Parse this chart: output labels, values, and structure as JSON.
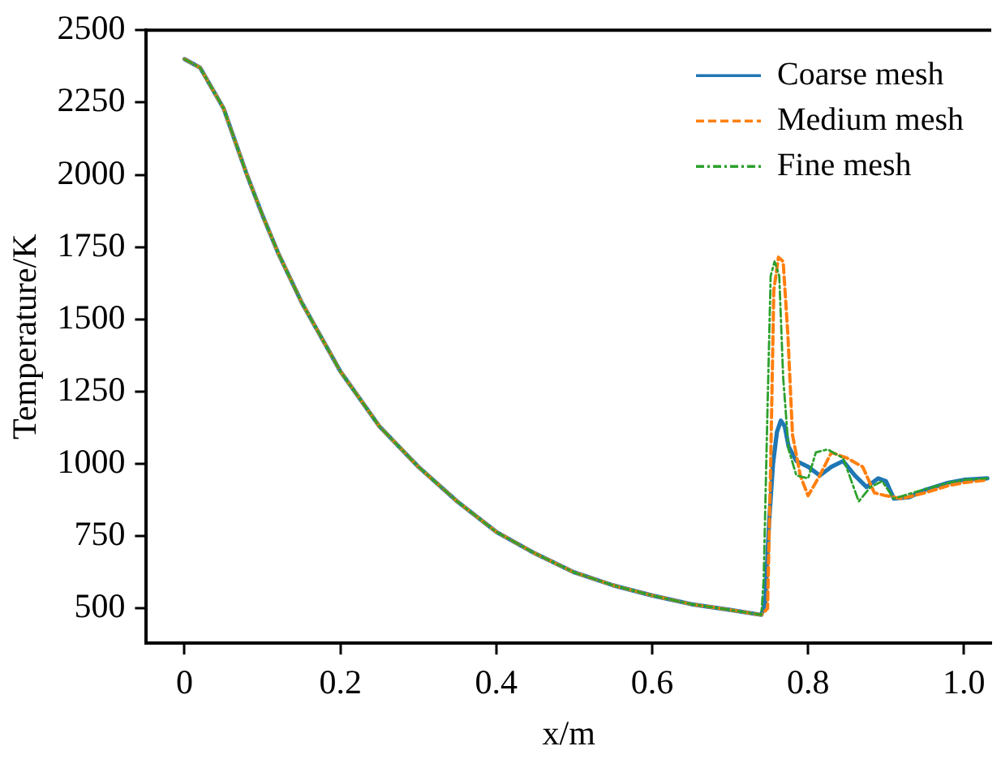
{
  "chart_data": {
    "type": "line",
    "xlabel": "x/m",
    "ylabel": "Temperature/K",
    "xlim": [
      -0.049,
      1.035
    ],
    "ylim": [
      380,
      2500
    ],
    "xticks": [
      0,
      0.2,
      0.4,
      0.6,
      0.8,
      {
        "value": 1,
        "label": "1.0"
      }
    ],
    "yticks": [
      500,
      750,
      1000,
      1250,
      1500,
      1750,
      2000,
      2250,
      2500
    ],
    "grid": false,
    "legend": "top right",
    "marker": "none",
    "series": [
      {
        "name": "Coarse mesh",
        "color": "#1f77b4",
        "line_style": "solid",
        "x": [
          0,
          0.02,
          0.05,
          0.08,
          0.1,
          0.12,
          0.15,
          0.2,
          0.25,
          0.3,
          0.35,
          0.4,
          0.45,
          0.5,
          0.55,
          0.6,
          0.65,
          0.7,
          0.74,
          0.745,
          0.75,
          0.755,
          0.76,
          0.765,
          0.77,
          0.775,
          0.785,
          0.8,
          0.815,
          0.83,
          0.845,
          0.86,
          0.875,
          0.89,
          0.9,
          0.91,
          0.93,
          0.95,
          0.98,
          1.0,
          1.03
        ],
        "values": [
          2400,
          2370,
          2230,
          2000,
          1860,
          1730,
          1560,
          1320,
          1130,
          990,
          870,
          765,
          690,
          625,
          580,
          545,
          515,
          495,
          478,
          520,
          800,
          1000,
          1110,
          1150,
          1130,
          1060,
          1010,
          990,
          960,
          990,
          1010,
          960,
          920,
          950,
          940,
          880,
          885,
          910,
          935,
          945,
          950
        ]
      },
      {
        "name": "Medium mesh",
        "color": "#ff7f0e",
        "line_style": "dashed",
        "x": [
          0,
          0.02,
          0.05,
          0.08,
          0.1,
          0.12,
          0.15,
          0.2,
          0.25,
          0.3,
          0.35,
          0.4,
          0.45,
          0.5,
          0.55,
          0.6,
          0.65,
          0.7,
          0.74,
          0.748,
          0.752,
          0.756,
          0.762,
          0.768,
          0.774,
          0.78,
          0.79,
          0.8,
          0.815,
          0.83,
          0.85,
          0.87,
          0.885,
          0.9,
          0.92,
          0.95,
          0.98,
          1.0,
          1.03
        ],
        "values": [
          2400,
          2370,
          2230,
          2000,
          1860,
          1730,
          1560,
          1320,
          1130,
          990,
          870,
          765,
          690,
          625,
          580,
          545,
          515,
          495,
          478,
          500,
          1000,
          1600,
          1715,
          1700,
          1450,
          1100,
          960,
          890,
          960,
          1040,
          1020,
          990,
          900,
          890,
          880,
          900,
          925,
          935,
          945
        ]
      },
      {
        "name": "Fine mesh",
        "color": "#2ca02c",
        "line_style": "dashdot",
        "x": [
          0,
          0.02,
          0.05,
          0.08,
          0.1,
          0.12,
          0.15,
          0.2,
          0.25,
          0.3,
          0.35,
          0.4,
          0.45,
          0.5,
          0.55,
          0.6,
          0.65,
          0.7,
          0.74,
          0.743,
          0.748,
          0.752,
          0.757,
          0.763,
          0.768,
          0.775,
          0.785,
          0.8,
          0.81,
          0.825,
          0.845,
          0.865,
          0.88,
          0.895,
          0.91,
          0.94,
          0.98,
          1.0,
          1.03
        ],
        "values": [
          2400,
          2370,
          2230,
          2000,
          1860,
          1730,
          1560,
          1320,
          1130,
          990,
          870,
          765,
          690,
          625,
          580,
          545,
          515,
          495,
          478,
          600,
          1200,
          1650,
          1700,
          1650,
          1300,
          1050,
          960,
          950,
          1040,
          1050,
          1020,
          870,
          920,
          940,
          880,
          905,
          935,
          945,
          950
        ]
      }
    ]
  }
}
